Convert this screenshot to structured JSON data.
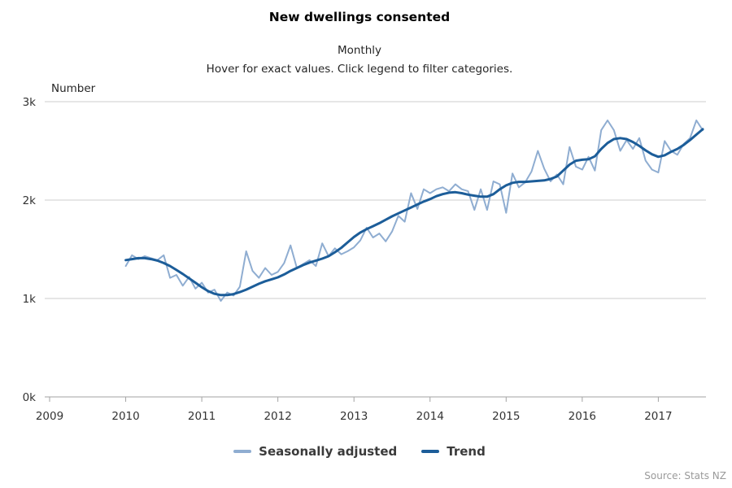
{
  "chart_data": {
    "type": "line",
    "title": "New dwellings consented",
    "subtitle": "Monthly",
    "instruction": "Hover for exact values. Click legend to filter categories.",
    "source": "Source: Stats NZ",
    "grid": "horizontal",
    "legend_position": "bottom",
    "y_axis": {
      "label": "Number",
      "range": [
        0,
        3000
      ],
      "ticks": [
        {
          "value": 0,
          "label": "0k"
        },
        {
          "value": 1000,
          "label": "1k"
        },
        {
          "value": 2000,
          "label": "2k"
        },
        {
          "value": 3000,
          "label": "3k"
        }
      ]
    },
    "x_axis": {
      "ticks": [
        2009,
        2010,
        2011,
        2012,
        2013,
        2014,
        2015,
        2016,
        2017
      ],
      "frequency": "monthly",
      "start_month": "2010-01",
      "end_month": "2017-08"
    },
    "series": [
      {
        "name": "Seasonally adjusted",
        "color": "#8FADD1",
        "stroke_width": 2,
        "values": [
          1330,
          1440,
          1400,
          1430,
          1410,
          1390,
          1440,
          1210,
          1240,
          1130,
          1220,
          1100,
          1160,
          1060,
          1090,
          975,
          1060,
          1030,
          1120,
          1480,
          1280,
          1210,
          1310,
          1240,
          1270,
          1360,
          1540,
          1310,
          1350,
          1390,
          1330,
          1560,
          1430,
          1510,
          1450,
          1480,
          1520,
          1590,
          1720,
          1620,
          1660,
          1580,
          1680,
          1840,
          1780,
          2070,
          1910,
          2110,
          2070,
          2110,
          2130,
          2090,
          2160,
          2110,
          2090,
          1900,
          2110,
          1900,
          2190,
          2160,
          1870,
          2270,
          2130,
          2180,
          2290,
          2500,
          2320,
          2190,
          2260,
          2160,
          2540,
          2340,
          2310,
          2440,
          2300,
          2710,
          2810,
          2710,
          2500,
          2610,
          2520,
          2630,
          2400,
          2310,
          2280,
          2600,
          2500,
          2460,
          2570,
          2630,
          2810,
          2710
        ]
      },
      {
        "name": "Trend",
        "color": "#1C5D99",
        "stroke_width": 3,
        "values": [
          1390,
          1400,
          1410,
          1410,
          1400,
          1385,
          1360,
          1330,
          1290,
          1250,
          1205,
          1160,
          1115,
          1075,
          1048,
          1035,
          1035,
          1045,
          1065,
          1090,
          1120,
          1150,
          1175,
          1195,
          1215,
          1245,
          1280,
          1310,
          1340,
          1365,
          1385,
          1405,
          1430,
          1470,
          1515,
          1570,
          1625,
          1670,
          1705,
          1735,
          1765,
          1800,
          1835,
          1865,
          1895,
          1925,
          1955,
          1985,
          2010,
          2040,
          2060,
          2075,
          2080,
          2070,
          2055,
          2045,
          2035,
          2035,
          2060,
          2110,
          2150,
          2175,
          2185,
          2185,
          2190,
          2195,
          2200,
          2215,
          2240,
          2300,
          2360,
          2400,
          2410,
          2415,
          2445,
          2520,
          2580,
          2620,
          2630,
          2620,
          2590,
          2550,
          2505,
          2465,
          2440,
          2455,
          2490,
          2520,
          2560,
          2610,
          2665,
          2720
        ]
      }
    ]
  }
}
